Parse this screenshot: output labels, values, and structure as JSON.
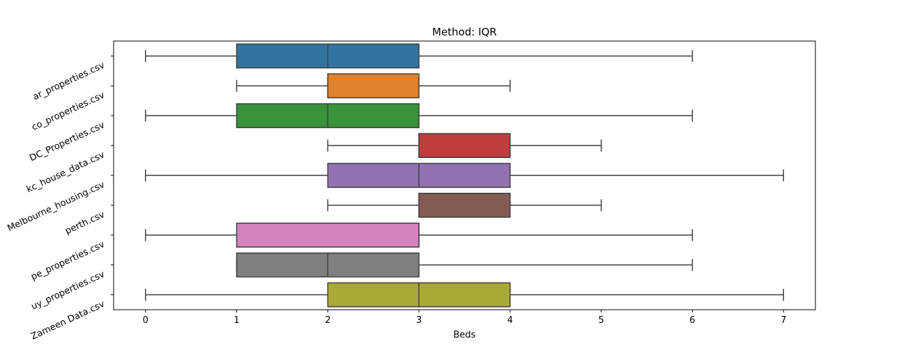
{
  "chart_data": {
    "type": "boxplot",
    "title": "Method: IQR",
    "xlabel": "Beds",
    "ylabel": "",
    "orientation": "horizontal",
    "xlim": [
      -0.35,
      7.35
    ],
    "x_ticks": [
      0,
      1,
      2,
      3,
      4,
      5,
      6,
      7
    ],
    "grid": false,
    "series": [
      {
        "name": "ar_properties.csv",
        "whisker_low": 0,
        "q1": 1,
        "median": 2,
        "q3": 3,
        "whisker_high": 6,
        "color": "#3274a1"
      },
      {
        "name": "co_properties.csv",
        "whisker_low": 1,
        "q1": 2,
        "median": 2,
        "q3": 3,
        "whisker_high": 4,
        "color": "#e1812c"
      },
      {
        "name": "DC_Properties.csv",
        "whisker_low": 0,
        "q1": 1,
        "median": 2,
        "q3": 3,
        "whisker_high": 6,
        "color": "#3a923a"
      },
      {
        "name": "kc_house_data.csv",
        "whisker_low": 2,
        "q1": 3,
        "median": 3,
        "q3": 4,
        "whisker_high": 5,
        "color": "#c03d3e"
      },
      {
        "name": "Melbourne_housing.csv",
        "whisker_low": 0,
        "q1": 2,
        "median": 3,
        "q3": 4,
        "whisker_high": 7,
        "color": "#9372b2"
      },
      {
        "name": "perth.csv",
        "whisker_low": 2,
        "q1": 3,
        "median": 3,
        "q3": 4,
        "whisker_high": 5,
        "color": "#845b53"
      },
      {
        "name": "pe_properties.csv",
        "whisker_low": 0,
        "q1": 1,
        "median": 3,
        "q3": 3,
        "whisker_high": 6,
        "color": "#d684bd"
      },
      {
        "name": "uy_properties.csv",
        "whisker_low": 1,
        "q1": 1,
        "median": 2,
        "q3": 3,
        "whisker_high": 6,
        "color": "#7f7f7f"
      },
      {
        "name": "Zameen Data.csv",
        "whisker_low": 0,
        "q1": 2,
        "median": 3,
        "q3": 4,
        "whisker_high": 7,
        "color": "#a9aa35"
      }
    ]
  }
}
